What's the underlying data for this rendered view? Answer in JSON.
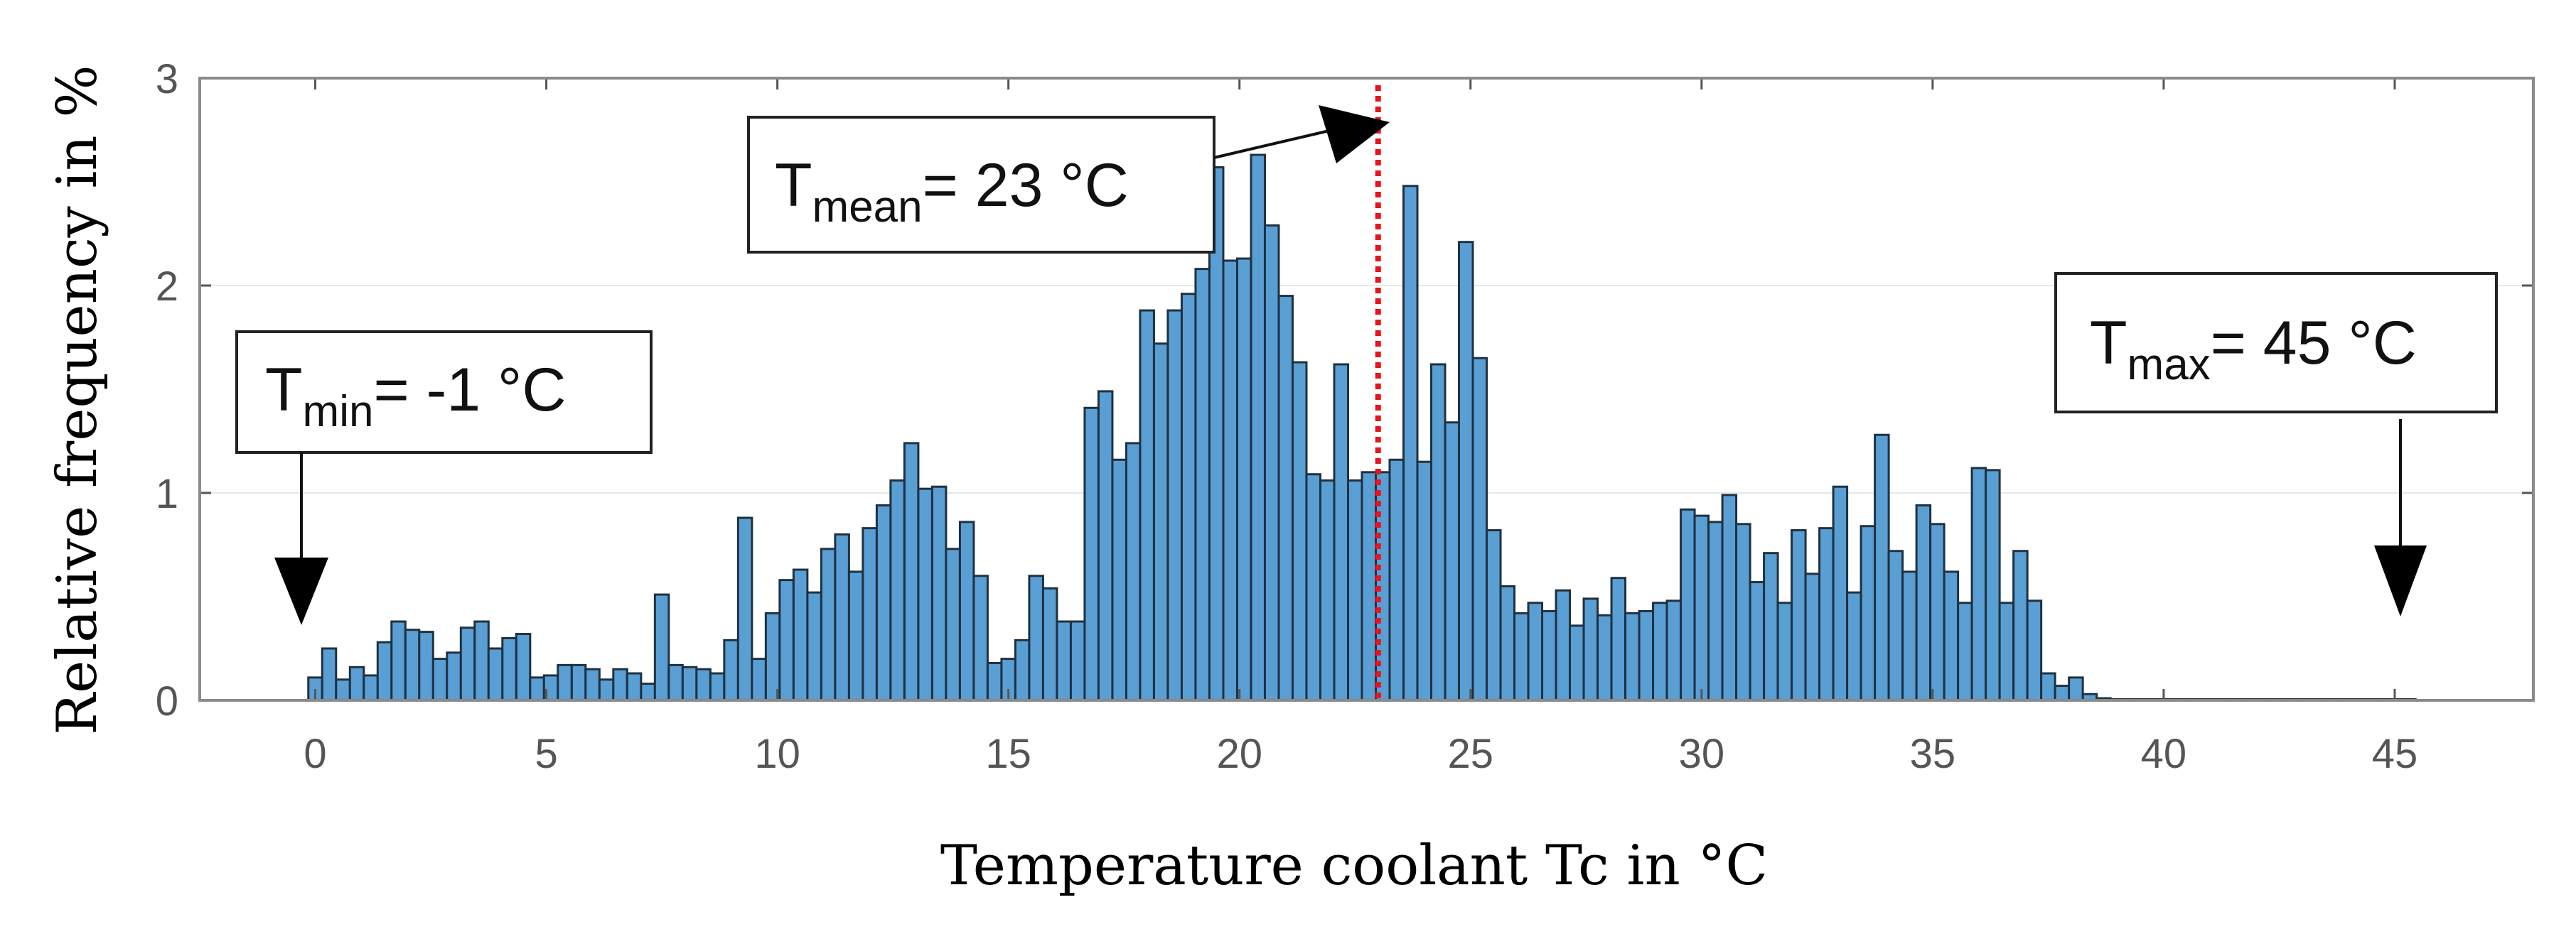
{
  "chart_data": {
    "type": "bar",
    "title": "",
    "xlabel": "Temperature coolant Tc in °C",
    "ylabel": "Relative frequency in %",
    "xlim": [
      -2.5,
      48
    ],
    "ylim": [
      0,
      3
    ],
    "xticks": [
      0,
      5,
      10,
      15,
      20,
      25,
      30,
      35,
      40,
      45
    ],
    "yticks": [
      0,
      1,
      2,
      3
    ],
    "bin_width": 0.3,
    "x_start": -0.15,
    "values": [
      0.11,
      0.25,
      0.1,
      0.16,
      0.12,
      0.28,
      0.38,
      0.34,
      0.33,
      0.2,
      0.23,
      0.35,
      0.38,
      0.25,
      0.3,
      0.32,
      0.11,
      0.12,
      0.17,
      0.17,
      0.15,
      0.1,
      0.15,
      0.13,
      0.08,
      0.51,
      0.17,
      0.16,
      0.15,
      0.13,
      0.29,
      0.88,
      0.2,
      0.42,
      0.58,
      0.63,
      0.52,
      0.73,
      0.8,
      0.62,
      0.83,
      0.94,
      1.06,
      1.24,
      1.02,
      1.03,
      0.73,
      0.86,
      0.6,
      0.18,
      0.2,
      0.29,
      0.6,
      0.54,
      0.38,
      0.38,
      1.41,
      1.49,
      1.16,
      1.24,
      1.88,
      1.72,
      1.88,
      1.96,
      2.08,
      2.57,
      2.12,
      2.13,
      2.63,
      2.29,
      1.95,
      1.63,
      1.09,
      1.06,
      1.62,
      1.06,
      1.1,
      1.1,
      1.16,
      2.48,
      1.15,
      1.62,
      1.34,
      2.21,
      1.65,
      0.82,
      0.55,
      0.42,
      0.47,
      0.43,
      0.53,
      0.36,
      0.49,
      0.41,
      0.59,
      0.42,
      0.43,
      0.47,
      0.48,
      0.92,
      0.89,
      0.86,
      0.99,
      0.85,
      0.57,
      0.71,
      0.47,
      0.82,
      0.61,
      0.83,
      1.03,
      0.52,
      0.84,
      1.28,
      0.72,
      0.62,
      0.94,
      0.85,
      0.62,
      0.47,
      1.12,
      1.11,
      0.47,
      0.72,
      0.48,
      0.13,
      0.07,
      0.11,
      0.03,
      0.01,
      0.005,
      0.005,
      0.005,
      0.005,
      0.005,
      0.005,
      0.005,
      0.005,
      0.005,
      0.005,
      0.005,
      0.005,
      0.005,
      0.005,
      0.005,
      0.005,
      0.005,
      0.005,
      0.005,
      0.005,
      0.005,
      0.005
    ],
    "mean_line": {
      "x": 23,
      "color": "#e8141c"
    },
    "colors": {
      "bar_fill": "#5a9fd4",
      "bar_edge": "#1f3140"
    },
    "annotations": [
      {
        "id": "min",
        "symbol": "T",
        "subscript": "min",
        "text": "= -1 °C",
        "target_x": -0.1
      },
      {
        "id": "mean",
        "symbol": "T",
        "subscript": "mean",
        "text": "= 23 °C",
        "target_x": 23
      },
      {
        "id": "max",
        "symbol": "T",
        "subscript": "max",
        "text": "= 45 °C",
        "target_x": 45
      }
    ]
  }
}
